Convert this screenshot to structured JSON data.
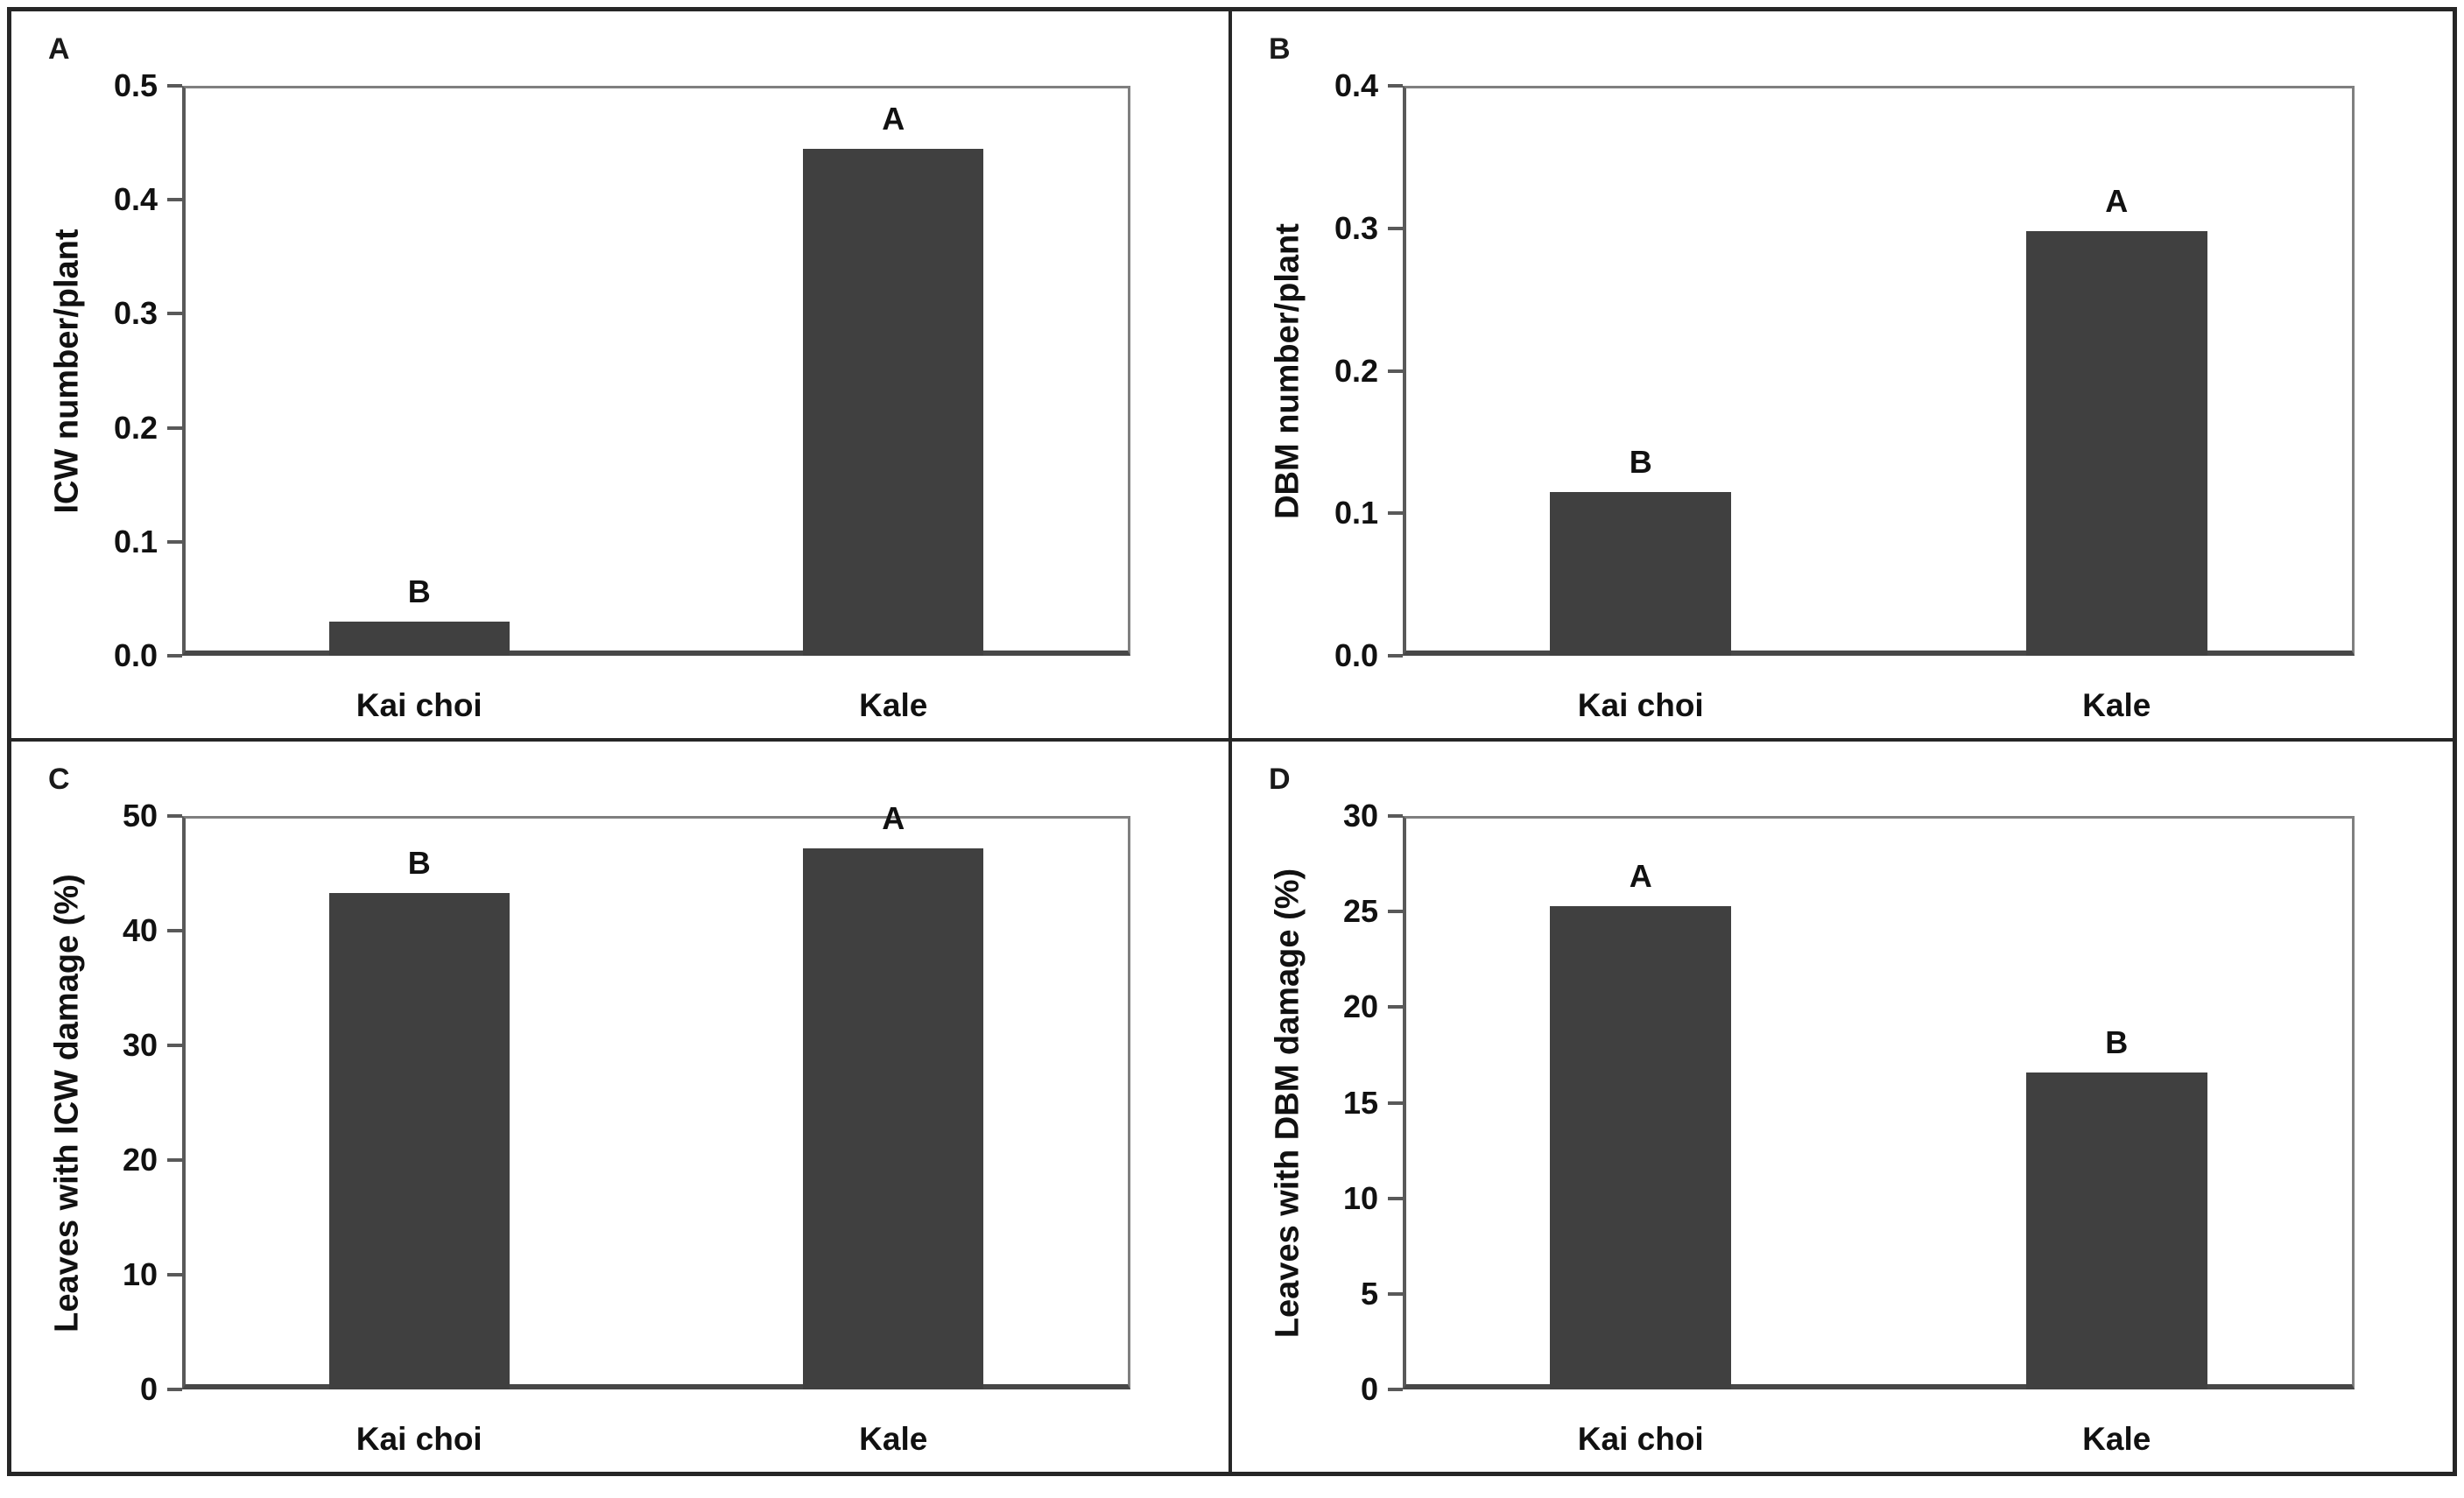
{
  "colors": {
    "bar_fill": "#404040",
    "axis_line": "#595959",
    "frame_line": "#7f7f7f",
    "figure_border": "#262626",
    "text": "#111111",
    "background": "#ffffff"
  },
  "chart_data": [
    {
      "type": "bar",
      "panel_label": "A",
      "ylabel": "ICW number/plant",
      "categories": [
        "Kai choi",
        "Kale"
      ],
      "values": [
        0.03,
        0.445
      ],
      "bar_letters": [
        "B",
        "A"
      ],
      "ylim": [
        0,
        0.5
      ],
      "yticks": [
        0,
        0.1,
        0.2,
        0.3,
        0.4,
        0.5
      ],
      "ytick_labels": [
        "0.0",
        "0.1",
        "0.2",
        "0.3",
        "0.4",
        "0.5"
      ],
      "xlabel": "",
      "grid": false,
      "legend": "none"
    },
    {
      "type": "bar",
      "panel_label": "B",
      "ylabel": "DBM number/plant",
      "categories": [
        "Kai choi",
        "Kale"
      ],
      "values": [
        0.115,
        0.298
      ],
      "bar_letters": [
        "B",
        "A"
      ],
      "ylim": [
        0,
        0.4
      ],
      "yticks": [
        0,
        0.1,
        0.2,
        0.3,
        0.4
      ],
      "ytick_labels": [
        "0.0",
        "0.1",
        "0.2",
        "0.3",
        "0.4"
      ],
      "xlabel": "",
      "grid": false,
      "legend": "none"
    },
    {
      "type": "bar",
      "panel_label": "C",
      "ylabel": "Leaves with ICW damage (%)",
      "categories": [
        "Kai choi",
        "Kale"
      ],
      "values": [
        43.3,
        47.2
      ],
      "bar_letters": [
        "B",
        "A"
      ],
      "ylim": [
        0,
        50
      ],
      "yticks": [
        0,
        10,
        20,
        30,
        40,
        50
      ],
      "ytick_labels": [
        "0",
        "10",
        "20",
        "30",
        "40",
        "50"
      ],
      "xlabel": "",
      "grid": false,
      "legend": "none"
    },
    {
      "type": "bar",
      "panel_label": "D",
      "ylabel": "Leaves with DBM damage (%)",
      "categories": [
        "Kai choi",
        "Kale"
      ],
      "values": [
        25.3,
        16.6
      ],
      "bar_letters": [
        "A",
        "B"
      ],
      "ylim": [
        0,
        30
      ],
      "yticks": [
        0,
        5,
        10,
        15,
        20,
        25,
        30
      ],
      "ytick_labels": [
        "0",
        "5",
        "10",
        "15",
        "20",
        "25",
        "30"
      ],
      "xlabel": "",
      "grid": false,
      "legend": "none"
    }
  ]
}
